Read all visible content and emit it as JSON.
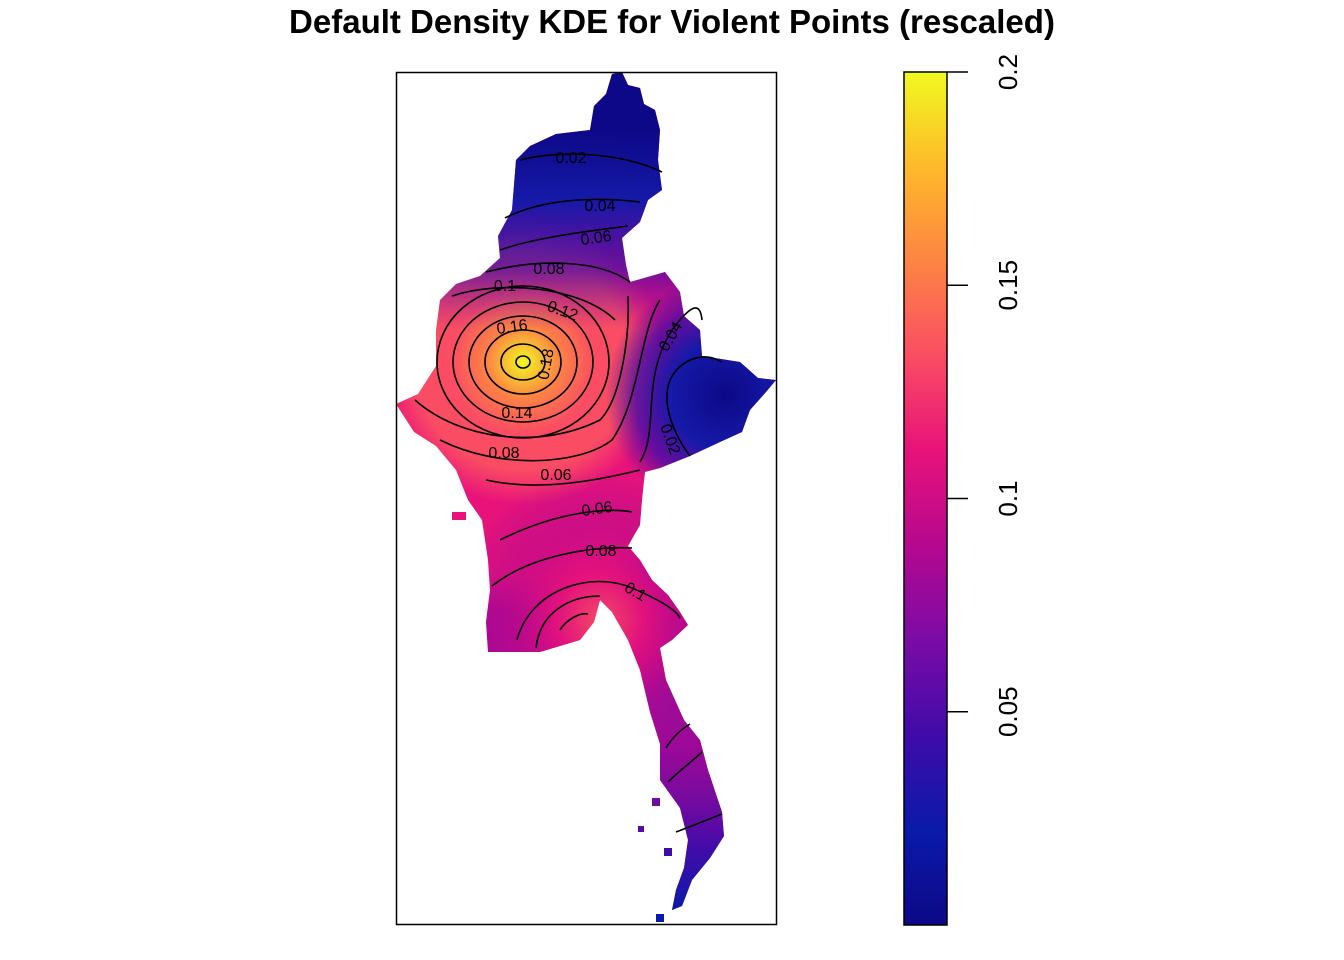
{
  "chart_data": {
    "type": "heatmap",
    "title": "Default Density KDE for Violent Points (rescaled)",
    "colorbar": {
      "range": [
        0,
        0.2
      ],
      "ticks": [
        {
          "value": 0.05,
          "label": "0.05"
        },
        {
          "value": 0.1,
          "label": "0.1"
        },
        {
          "value": 0.15,
          "label": "0.15"
        },
        {
          "value": 0.2,
          "label": "0.2"
        }
      ],
      "colors": [
        "#0d0887",
        "#0a1aaa",
        "#3f0ba9",
        "#7a0ba6",
        "#b5088f",
        "#e8127a",
        "#fa4d63",
        "#fd8443",
        "#feb92a",
        "#f0f921"
      ]
    },
    "peak": {
      "value": 0.19
    },
    "contours": [
      {
        "label": "0.02"
      },
      {
        "label": "0.04"
      },
      {
        "label": "0.06"
      },
      {
        "label": "0.08"
      },
      {
        "label": "0.1"
      },
      {
        "label": "0.12"
      },
      {
        "label": "0.16"
      },
      {
        "label": "0.18"
      },
      {
        "label": "0.14"
      },
      {
        "label": "0.08"
      },
      {
        "label": "0.06"
      },
      {
        "label": "0.06"
      },
      {
        "label": "0.08"
      },
      {
        "label": "0.1"
      },
      {
        "label": "0.04"
      },
      {
        "label": "0.02"
      }
    ]
  }
}
